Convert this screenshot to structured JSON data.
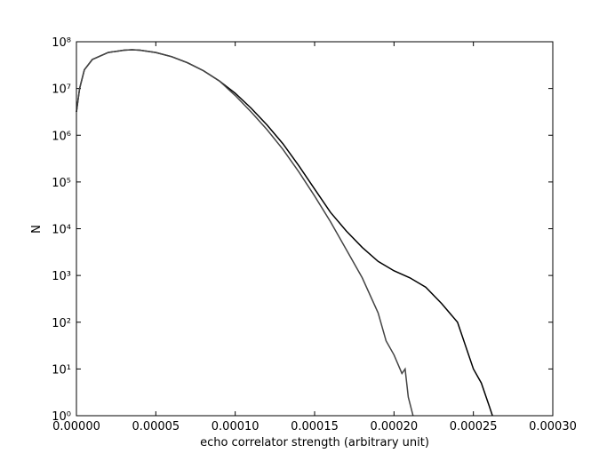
{
  "chart_data": {
    "type": "line",
    "xlabel": "echo correlator strength (arbitrary unit)",
    "ylabel": "N",
    "log_y": true,
    "xlim": [
      0,
      0.0003
    ],
    "ylim": [
      1,
      100000000
    ],
    "xticks": [
      {
        "value": 0,
        "label": "0.00000"
      },
      {
        "value": 5e-05,
        "label": "0.00005"
      },
      {
        "value": 0.0001,
        "label": "0.00010"
      },
      {
        "value": 0.00015,
        "label": "0.00015"
      },
      {
        "value": 0.0002,
        "label": "0.00020"
      },
      {
        "value": 0.00025,
        "label": "0.00025"
      },
      {
        "value": 0.0003,
        "label": "0.00030"
      }
    ],
    "yticks": [
      {
        "value": 1,
        "label": "10⁰"
      },
      {
        "value": 10,
        "label": "10¹"
      },
      {
        "value": 100,
        "label": "10²"
      },
      {
        "value": 1000,
        "label": "10³"
      },
      {
        "value": 10000,
        "label": "10⁴"
      },
      {
        "value": 100000,
        "label": "10⁵"
      },
      {
        "value": 1000000,
        "label": "10⁶"
      },
      {
        "value": 10000000,
        "label": "10⁷"
      },
      {
        "value": 100000000,
        "label": "10⁸"
      }
    ],
    "series": [
      {
        "color": "#000000",
        "x": [
          0,
          2e-06,
          5e-06,
          1e-05,
          2e-05,
          3e-05,
          3.5e-05,
          4e-05,
          5e-05,
          6e-05,
          7e-05,
          8e-05,
          9e-05,
          0.0001,
          0.00011,
          0.00012,
          0.00013,
          0.00014,
          0.00015,
          0.00016,
          0.00017,
          0.00018,
          0.00019,
          0.0002,
          0.00021,
          0.00022,
          0.00023,
          0.00024,
          0.00025,
          0.000255,
          0.00026,
          0.000262
        ],
        "values": [
          3160000,
          10000000,
          25100000,
          41700000,
          58900000,
          66100000,
          67600000,
          66100000,
          58900000,
          47900000,
          35500000,
          24000000,
          14500000,
          7940000,
          3800000,
          1660000,
          661000,
          224000,
          70800,
          22400,
          8910,
          3980,
          2000,
          1260,
          891,
          562,
          251,
          100,
          10,
          5,
          1.6,
          1
        ]
      },
      {
        "color": "#444444",
        "x": [
          0,
          2e-06,
          5e-06,
          1e-05,
          2e-05,
          3e-05,
          3.5e-05,
          4e-05,
          5e-05,
          6e-05,
          7e-05,
          8e-05,
          9e-05,
          0.0001,
          0.00011,
          0.00012,
          0.00013,
          0.00014,
          0.00015,
          0.00016,
          0.00017,
          0.00018,
          0.00019,
          0.000195,
          0.0002,
          0.000205,
          0.000207,
          0.000209,
          0.000212
        ],
        "values": [
          3160000,
          10000000,
          25100000,
          41700000,
          58900000,
          66100000,
          67600000,
          66100000,
          58900000,
          47900000,
          35500000,
          24000000,
          14500000,
          7080000,
          3160000,
          1320000,
          501000,
          166000,
          50100,
          14100,
          3550,
          891,
          158,
          40,
          20,
          8,
          10,
          2.5,
          1
        ]
      }
    ]
  }
}
